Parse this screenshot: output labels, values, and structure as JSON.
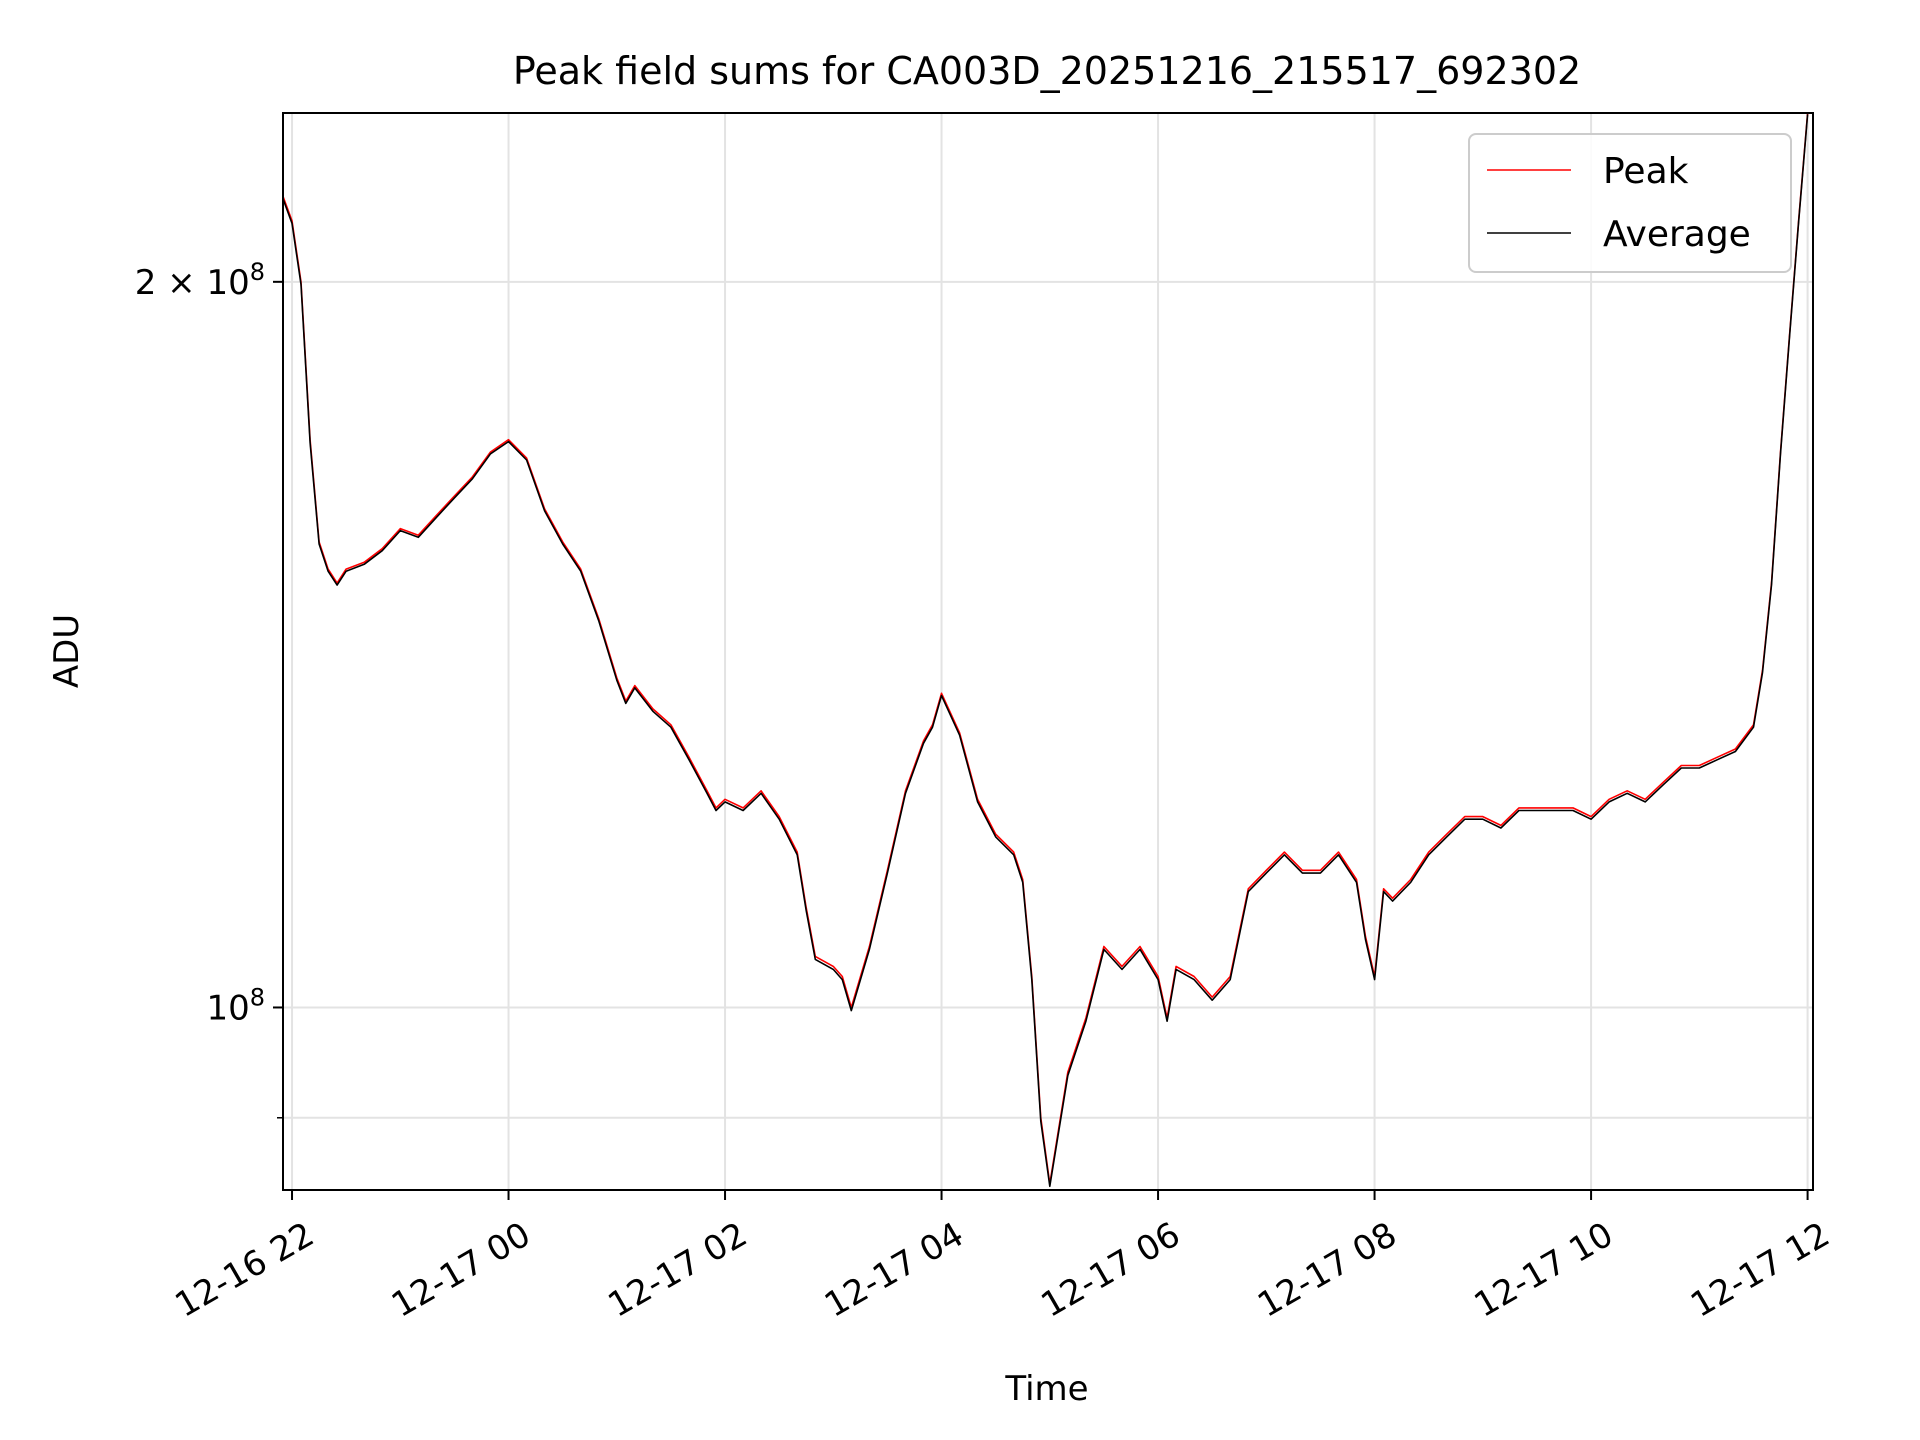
{
  "chart_data": {
    "type": "line",
    "title": "Peak field sums for CA003D_20251216_215517_692302",
    "xlabel": "Time",
    "ylabel": "ADU",
    "yscale": "log",
    "ylim": [
      84000000,
      235000000
    ],
    "xlim": [
      "2025-12-16 21:55",
      "2025-12-17 12:03"
    ],
    "grid": true,
    "legend_position": "top-right",
    "x_tick_labels": [
      "12-16 22",
      "12-17 00",
      "12-17 02",
      "12-17 04",
      "12-17 06",
      "12-17 08",
      "12-17 10",
      "12-17 12"
    ],
    "y_tick_labels": [
      {
        "value": 200000000,
        "mantissa": "2",
        "times": "×",
        "base": "10",
        "exp": "8"
      },
      {
        "value": 100000000,
        "mantissa": "",
        "times": "",
        "base": "10",
        "exp": "8"
      }
    ],
    "y_minor_ticks": [
      90000000
    ],
    "x": [
      "2025-12-16 21:55",
      "2025-12-16 22:00",
      "2025-12-16 22:05",
      "2025-12-16 22:10",
      "2025-12-16 22:15",
      "2025-12-16 22:20",
      "2025-12-16 22:25",
      "2025-12-16 22:30",
      "2025-12-16 22:40",
      "2025-12-16 22:50",
      "2025-12-16 23:00",
      "2025-12-16 23:10",
      "2025-12-16 23:20",
      "2025-12-16 23:30",
      "2025-12-16 23:40",
      "2025-12-16 23:50",
      "2025-12-17 00:00",
      "2025-12-17 00:10",
      "2025-12-17 00:20",
      "2025-12-17 00:30",
      "2025-12-17 00:40",
      "2025-12-17 00:50",
      "2025-12-17 01:00",
      "2025-12-17 01:05",
      "2025-12-17 01:10",
      "2025-12-17 01:20",
      "2025-12-17 01:30",
      "2025-12-17 01:40",
      "2025-12-17 01:50",
      "2025-12-17 01:55",
      "2025-12-17 02:00",
      "2025-12-17 02:10",
      "2025-12-17 02:20",
      "2025-12-17 02:30",
      "2025-12-17 02:40",
      "2025-12-17 02:45",
      "2025-12-17 02:50",
      "2025-12-17 03:00",
      "2025-12-17 03:05",
      "2025-12-17 03:10",
      "2025-12-17 03:20",
      "2025-12-17 03:30",
      "2025-12-17 03:40",
      "2025-12-17 03:50",
      "2025-12-17 03:55",
      "2025-12-17 04:00",
      "2025-12-17 04:10",
      "2025-12-17 04:20",
      "2025-12-17 04:30",
      "2025-12-17 04:40",
      "2025-12-17 04:45",
      "2025-12-17 04:50",
      "2025-12-17 04:55",
      "2025-12-17 05:00",
      "2025-12-17 05:10",
      "2025-12-17 05:20",
      "2025-12-17 05:30",
      "2025-12-17 05:40",
      "2025-12-17 05:50",
      "2025-12-17 06:00",
      "2025-12-17 06:05",
      "2025-12-17 06:10",
      "2025-12-17 06:20",
      "2025-12-17 06:30",
      "2025-12-17 06:40",
      "2025-12-17 06:50",
      "2025-12-17 07:00",
      "2025-12-17 07:10",
      "2025-12-17 07:20",
      "2025-12-17 07:30",
      "2025-12-17 07:40",
      "2025-12-17 07:50",
      "2025-12-17 07:55",
      "2025-12-17 08:00",
      "2025-12-17 08:05",
      "2025-12-17 08:10",
      "2025-12-17 08:20",
      "2025-12-17 08:30",
      "2025-12-17 08:40",
      "2025-12-17 08:50",
      "2025-12-17 09:00",
      "2025-12-17 09:10",
      "2025-12-17 09:20",
      "2025-12-17 09:30",
      "2025-12-17 09:40",
      "2025-12-17 09:50",
      "2025-12-17 10:00",
      "2025-12-17 10:10",
      "2025-12-17 10:20",
      "2025-12-17 10:30",
      "2025-12-17 10:40",
      "2025-12-17 10:50",
      "2025-12-17 11:00",
      "2025-12-17 11:10",
      "2025-12-17 11:20",
      "2025-12-17 11:30",
      "2025-12-17 11:35",
      "2025-12-17 11:40",
      "2025-12-17 11:45",
      "2025-12-17 11:50",
      "2025-12-17 11:55",
      "2025-12-17 12:00"
    ],
    "series": [
      {
        "name": "Peak",
        "color": "#ff0000",
        "values": [
          217000000,
          212000000,
          200000000,
          172000000,
          156000000,
          152000000,
          150000000,
          152000000,
          153000000,
          155000000,
          158000000,
          157000000,
          160000000,
          163000000,
          166000000,
          170000000,
          172000000,
          169000000,
          161000000,
          156000000,
          152000000,
          145000000,
          137000000,
          134000000,
          136000000,
          133000000,
          131000000,
          127000000,
          123000000,
          121000000,
          122000000,
          121000000,
          123000000,
          120000000,
          116000000,
          110000000,
          105000000,
          104000000,
          103000000,
          100000000,
          106000000,
          114000000,
          123000000,
          129000000,
          131000000,
          135000000,
          130000000,
          122000000,
          118000000,
          116000000,
          113000000,
          103000000,
          90000000,
          84500000,
          94000000,
          99000000,
          106000000,
          104000000,
          106000000,
          103000000,
          99000000,
          104000000,
          103000000,
          101000000,
          103000000,
          112000000,
          114000000,
          116000000,
          114000000,
          114000000,
          116000000,
          113000000,
          107000000,
          103000000,
          112000000,
          111000000,
          113000000,
          116000000,
          118000000,
          120000000,
          120000000,
          119000000,
          121000000,
          121000000,
          121000000,
          121000000,
          120000000,
          122000000,
          123000000,
          122000000,
          124000000,
          126000000,
          126000000,
          127000000,
          128000000,
          131000000,
          138000000,
          150000000,
          170000000,
          190000000,
          212000000,
          235000000
        ]
      },
      {
        "name": "Average",
        "color": "#000000",
        "values": [
          216500000,
          211500000,
          199500000,
          171500000,
          155700000,
          151700000,
          149700000,
          151700000,
          152700000,
          154700000,
          157700000,
          156700000,
          159700000,
          162700000,
          165700000,
          169700000,
          171700000,
          168700000,
          160700000,
          155700000,
          151700000,
          144700000,
          136700000,
          133700000,
          135700000,
          132700000,
          130700000,
          126700000,
          122700000,
          120700000,
          121700000,
          120700000,
          122700000,
          119700000,
          115700000,
          109700000,
          104700000,
          103700000,
          102700000,
          99700000,
          105700000,
          113700000,
          122700000,
          128700000,
          130700000,
          134700000,
          129700000,
          121700000,
          117700000,
          115700000,
          112700000,
          102700000,
          89700000,
          84300000,
          93700000,
          98700000,
          105700000,
          103700000,
          105700000,
          102700000,
          98700000,
          103700000,
          102700000,
          100700000,
          102700000,
          111700000,
          113700000,
          115700000,
          113700000,
          113700000,
          115700000,
          112700000,
          106700000,
          102700000,
          111700000,
          110700000,
          112700000,
          115700000,
          117700000,
          119700000,
          119700000,
          118700000,
          120700000,
          120700000,
          120700000,
          120700000,
          119700000,
          121700000,
          122700000,
          121700000,
          123700000,
          125700000,
          125700000,
          126700000,
          127700000,
          130700000,
          137700000,
          149700000,
          169700000,
          189700000,
          211700000,
          234700000
        ]
      }
    ]
  }
}
